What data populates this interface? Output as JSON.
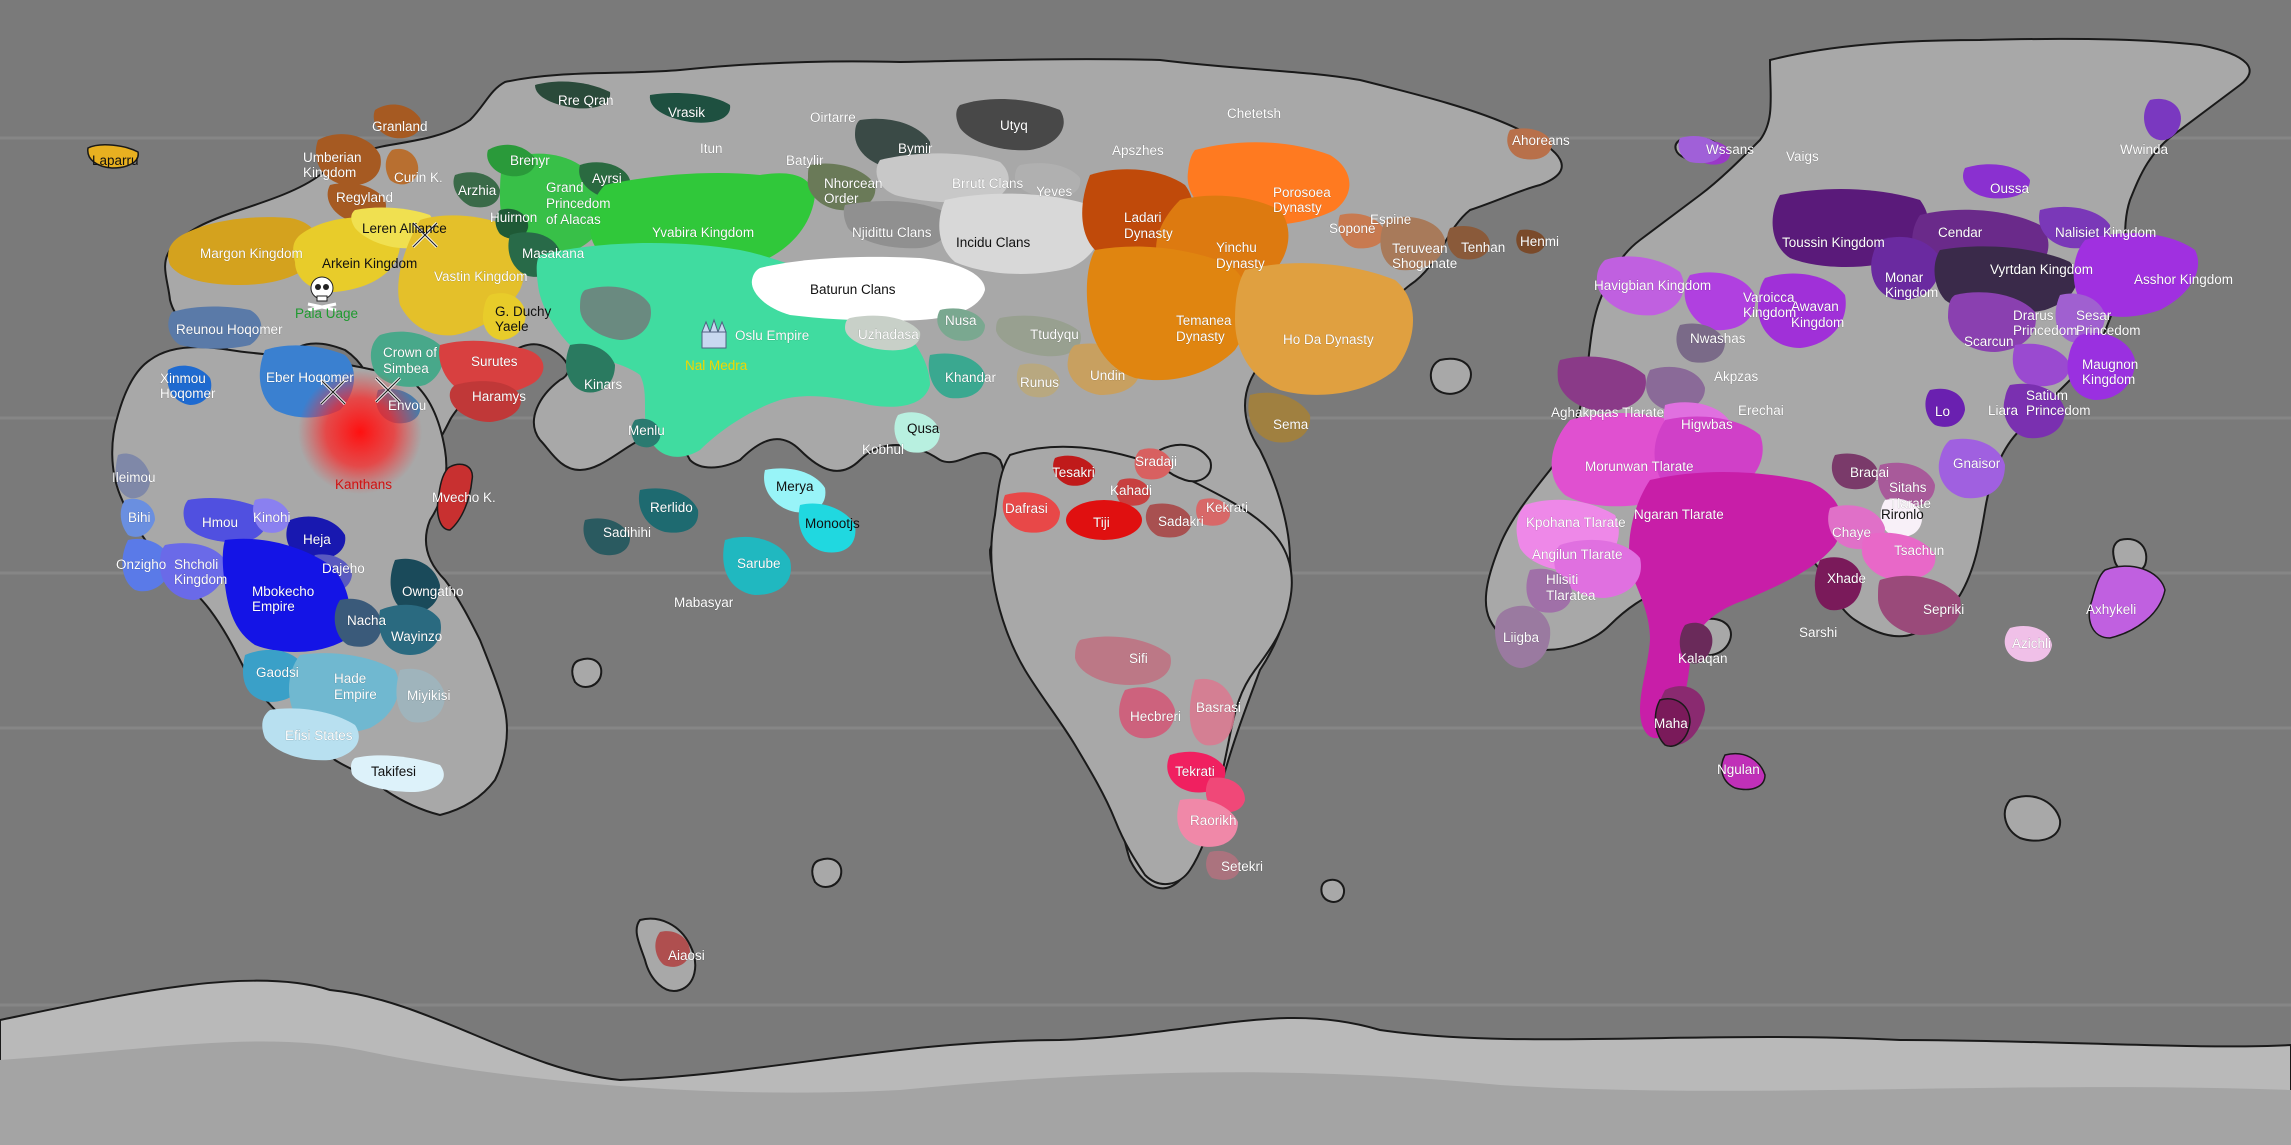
{
  "colors": {
    "ocean": "#7a7a7a",
    "land": "#a5a5a5",
    "land_dark": "#8d8d8d",
    "ice": "#b9b9b9",
    "coast": "#1a1a1a",
    "west_yellow": "#e2c22a",
    "north_green": "#2fc03a",
    "teal": "#3fdba0",
    "orange": "#e08a12",
    "purple": "#7a2ab8",
    "magenta": "#d044c0",
    "pink": "#e0708a",
    "blue": "#1e1ee8"
  },
  "icons": [
    "crossed-swords-icon",
    "skull-icon",
    "fortress-icon"
  ],
  "labels": [
    {
      "text": "Rre Qran",
      "tone": "white"
    },
    {
      "text": "Vrasik",
      "tone": "white"
    },
    {
      "text": "Oirtarre",
      "tone": "white"
    },
    {
      "text": "Utyq",
      "tone": "white"
    },
    {
      "text": "Chetetsh",
      "tone": "white"
    },
    {
      "text": "Ahoreans",
      "tone": "white"
    },
    {
      "text": "Granland",
      "tone": "white"
    },
    {
      "text": "Umberian",
      "tone": "white"
    },
    {
      "text": "Kingdom",
      "tone": "white"
    },
    {
      "text": "Curin K.",
      "tone": "white"
    },
    {
      "text": "Regyland",
      "tone": "white"
    },
    {
      "text": "Brenyr",
      "tone": "white"
    },
    {
      "text": "Ayrsi",
      "tone": "white"
    },
    {
      "text": "Arzhia",
      "tone": "white"
    },
    {
      "text": "Grand",
      "tone": "white"
    },
    {
      "text": "Princedom",
      "tone": "white"
    },
    {
      "text": "of Alacas",
      "tone": "white"
    },
    {
      "text": "Huirnon",
      "tone": "white"
    },
    {
      "text": "Itun",
      "tone": "white"
    },
    {
      "text": "Batylir",
      "tone": "white"
    },
    {
      "text": "Bymir",
      "tone": "white"
    },
    {
      "text": "Apszhes",
      "tone": "white"
    },
    {
      "text": "Nhorcean",
      "tone": "white"
    },
    {
      "text": "Order",
      "tone": "white"
    },
    {
      "text": "Brrutt Clans",
      "tone": "white"
    },
    {
      "text": "Yeves",
      "tone": "white"
    },
    {
      "text": "Ladari",
      "tone": "white"
    },
    {
      "text": "Dynasty",
      "tone": "white"
    },
    {
      "text": "Porosoea",
      "tone": "white"
    },
    {
      "text": "Dynasty",
      "tone": "white"
    },
    {
      "text": "Espine",
      "tone": "white"
    },
    {
      "text": "Sopone",
      "tone": "white"
    },
    {
      "text": "Teruvean",
      "tone": "white"
    },
    {
      "text": "Shogunate",
      "tone": "white"
    },
    {
      "text": "Tenhan",
      "tone": "white"
    },
    {
      "text": "Henmi",
      "tone": "white"
    },
    {
      "text": "Leren Alliance",
      "tone": "dark"
    },
    {
      "text": "Margon Kingdom",
      "tone": "white"
    },
    {
      "text": "Arkein Kingdom",
      "tone": "dark"
    },
    {
      "text": "Vastin Kingdom",
      "tone": "white"
    },
    {
      "text": "Masakana",
      "tone": "white"
    },
    {
      "text": "Yvabira Kingdom",
      "tone": "white"
    },
    {
      "text": "Njidittu Clans",
      "tone": "white"
    },
    {
      "text": "Incidu Clans",
      "tone": "dark"
    },
    {
      "text": "Yinchu",
      "tone": "white"
    },
    {
      "text": "Dynasty",
      "tone": "white"
    },
    {
      "text": "Baturun Clans",
      "tone": "dark"
    },
    {
      "text": "Pala Uage",
      "tone": "green"
    },
    {
      "text": "G. Duchy",
      "tone": "dark"
    },
    {
      "text": "Yaele",
      "tone": "dark"
    },
    {
      "text": "Reunou Hoqomer",
      "tone": "white"
    },
    {
      "text": "Crown of",
      "tone": "white"
    },
    {
      "text": "Simbea",
      "tone": "white"
    },
    {
      "text": "Surutes",
      "tone": "white"
    },
    {
      "text": "Oslu Empire",
      "tone": "white"
    },
    {
      "text": "Nal Medra",
      "tone": "yellow"
    },
    {
      "text": "Uzhadasa",
      "tone": "white"
    },
    {
      "text": "Nusa",
      "tone": "white"
    },
    {
      "text": "Ttudyqu",
      "tone": "white"
    },
    {
      "text": "Temanea",
      "tone": "white"
    },
    {
      "text": "Dynasty",
      "tone": "white"
    },
    {
      "text": "Ho Da Dynasty",
      "tone": "white"
    },
    {
      "text": "Xinmou",
      "tone": "white"
    },
    {
      "text": "Hoqomer",
      "tone": "white"
    },
    {
      "text": "Eber Hoqomer",
      "tone": "white"
    },
    {
      "text": "Envou",
      "tone": "white"
    },
    {
      "text": "Haramys",
      "tone": "white"
    },
    {
      "text": "Kinars",
      "tone": "white"
    },
    {
      "text": "Khandar",
      "tone": "white"
    },
    {
      "text": "Runus",
      "tone": "white"
    },
    {
      "text": "Undin",
      "tone": "white"
    },
    {
      "text": "Menlu",
      "tone": "white"
    },
    {
      "text": "Sema",
      "tone": "white"
    },
    {
      "text": "Qusa",
      "tone": "dark"
    },
    {
      "text": "Kobhul",
      "tone": "white"
    },
    {
      "text": "Kanthans",
      "tone": "red"
    },
    {
      "text": "Ileimou",
      "tone": "white"
    },
    {
      "text": "Mvecho K.",
      "tone": "white"
    },
    {
      "text": "Tesakri",
      "tone": "white"
    },
    {
      "text": "Sradaji",
      "tone": "white"
    },
    {
      "text": "Kahadi",
      "tone": "white"
    },
    {
      "text": "Kekrati",
      "tone": "white"
    },
    {
      "text": "Dafrasi",
      "tone": "white"
    },
    {
      "text": "Tiji",
      "tone": "white"
    },
    {
      "text": "Sadakri",
      "tone": "white"
    },
    {
      "text": "Merya",
      "tone": "dark"
    },
    {
      "text": "Monootjs",
      "tone": "dark"
    },
    {
      "text": "Rerlido",
      "tone": "white"
    },
    {
      "text": "Sadihihi",
      "tone": "white"
    },
    {
      "text": "Bihi",
      "tone": "white"
    },
    {
      "text": "Hmou",
      "tone": "white"
    },
    {
      "text": "Kinohi",
      "tone": "white"
    },
    {
      "text": "Heja",
      "tone": "white"
    },
    {
      "text": "Onzigho",
      "tone": "white"
    },
    {
      "text": "Shcholi",
      "tone": "white"
    },
    {
      "text": "Kingdom",
      "tone": "white"
    },
    {
      "text": "Dajeho",
      "tone": "white"
    },
    {
      "text": "Sarube",
      "tone": "white"
    },
    {
      "text": "Mbokecho",
      "tone": "white"
    },
    {
      "text": "Empire",
      "tone": "white"
    },
    {
      "text": "Owngatho",
      "tone": "white"
    },
    {
      "text": "Nacha",
      "tone": "white"
    },
    {
      "text": "Wayinzo",
      "tone": "white"
    },
    {
      "text": "Mabasyar",
      "tone": "white"
    },
    {
      "text": "Gaodsi",
      "tone": "white"
    },
    {
      "text": "Hade",
      "tone": "white"
    },
    {
      "text": "Empire",
      "tone": "white"
    },
    {
      "text": "Miyikisi",
      "tone": "white"
    },
    {
      "text": "Efisi States",
      "tone": "white"
    },
    {
      "text": "Takifesi",
      "tone": "dark"
    },
    {
      "text": "Sifi",
      "tone": "white"
    },
    {
      "text": "Hecbreri",
      "tone": "white"
    },
    {
      "text": "Basrasi",
      "tone": "white"
    },
    {
      "text": "Tekrati",
      "tone": "white"
    },
    {
      "text": "Raorikh",
      "tone": "white"
    },
    {
      "text": "Setekri",
      "tone": "white"
    },
    {
      "text": "Aiaosi",
      "tone": "white"
    },
    {
      "text": "Laparru",
      "tone": "dark"
    },
    {
      "text": "Wssans",
      "tone": "white"
    },
    {
      "text": "Vaigs",
      "tone": "white"
    },
    {
      "text": "Wwinda",
      "tone": "white"
    },
    {
      "text": "Oussa",
      "tone": "white"
    },
    {
      "text": "Toussin Kingdom",
      "tone": "white"
    },
    {
      "text": "Cendar",
      "tone": "white"
    },
    {
      "text": "Nalisiet Kingdom",
      "tone": "white"
    },
    {
      "text": "Havigbian Kingdom",
      "tone": "white"
    },
    {
      "text": "Monar",
      "tone": "white"
    },
    {
      "text": "Kingdom",
      "tone": "white"
    },
    {
      "text": "Vyrtdan Kingdom",
      "tone": "white"
    },
    {
      "text": "Asshor Kingdom",
      "tone": "white"
    },
    {
      "text": "Varoicca",
      "tone": "white"
    },
    {
      "text": "Kingdom",
      "tone": "white"
    },
    {
      "text": "Awavan",
      "tone": "white"
    },
    {
      "text": "Kingdom",
      "tone": "white"
    },
    {
      "text": "Drarus",
      "tone": "white"
    },
    {
      "text": "Princedom",
      "tone": "white"
    },
    {
      "text": "Sesar",
      "tone": "white"
    },
    {
      "text": "Princedom",
      "tone": "white"
    },
    {
      "text": "Nwashas",
      "tone": "white"
    },
    {
      "text": "Scarcun",
      "tone": "white"
    },
    {
      "text": "Maugnon",
      "tone": "white"
    },
    {
      "text": "Kingdom",
      "tone": "white"
    },
    {
      "text": "Akpzas",
      "tone": "white"
    },
    {
      "text": "Aghakpqas Tlarate",
      "tone": "white"
    },
    {
      "text": "Erechai",
      "tone": "white"
    },
    {
      "text": "Higwbas",
      "tone": "white"
    },
    {
      "text": "Lo",
      "tone": "white"
    },
    {
      "text": "Liara",
      "tone": "white"
    },
    {
      "text": "Satium",
      "tone": "white"
    },
    {
      "text": "Princedom",
      "tone": "white"
    },
    {
      "text": "Gnaisor",
      "tone": "white"
    },
    {
      "text": "Morunwan Tlarate",
      "tone": "white"
    },
    {
      "text": "Braqai",
      "tone": "white"
    },
    {
      "text": "Sitahs",
      "tone": "white"
    },
    {
      "text": "Tlarate",
      "tone": "white"
    },
    {
      "text": "Kpohana Tlarate",
      "tone": "white"
    },
    {
      "text": "Ngaran Tlarate",
      "tone": "white"
    },
    {
      "text": "Rironlo",
      "tone": "dark"
    },
    {
      "text": "Chaye",
      "tone": "white"
    },
    {
      "text": "Angilun Tlarate",
      "tone": "white"
    },
    {
      "text": "Tsachun",
      "tone": "white"
    },
    {
      "text": "Hlisiti",
      "tone": "white"
    },
    {
      "text": "Tlaratea",
      "tone": "white"
    },
    {
      "text": "Xhade",
      "tone": "white"
    },
    {
      "text": "Sepriki",
      "tone": "white"
    },
    {
      "text": "Axhykeli",
      "tone": "white"
    },
    {
      "text": "Liigba",
      "tone": "white"
    },
    {
      "text": "Sarshi",
      "tone": "white"
    },
    {
      "text": "Azichli",
      "tone": "white"
    },
    {
      "text": "Kalaqan",
      "tone": "white"
    },
    {
      "text": "Maha",
      "tone": "white"
    },
    {
      "text": "Ngulan",
      "tone": "white"
    }
  ]
}
